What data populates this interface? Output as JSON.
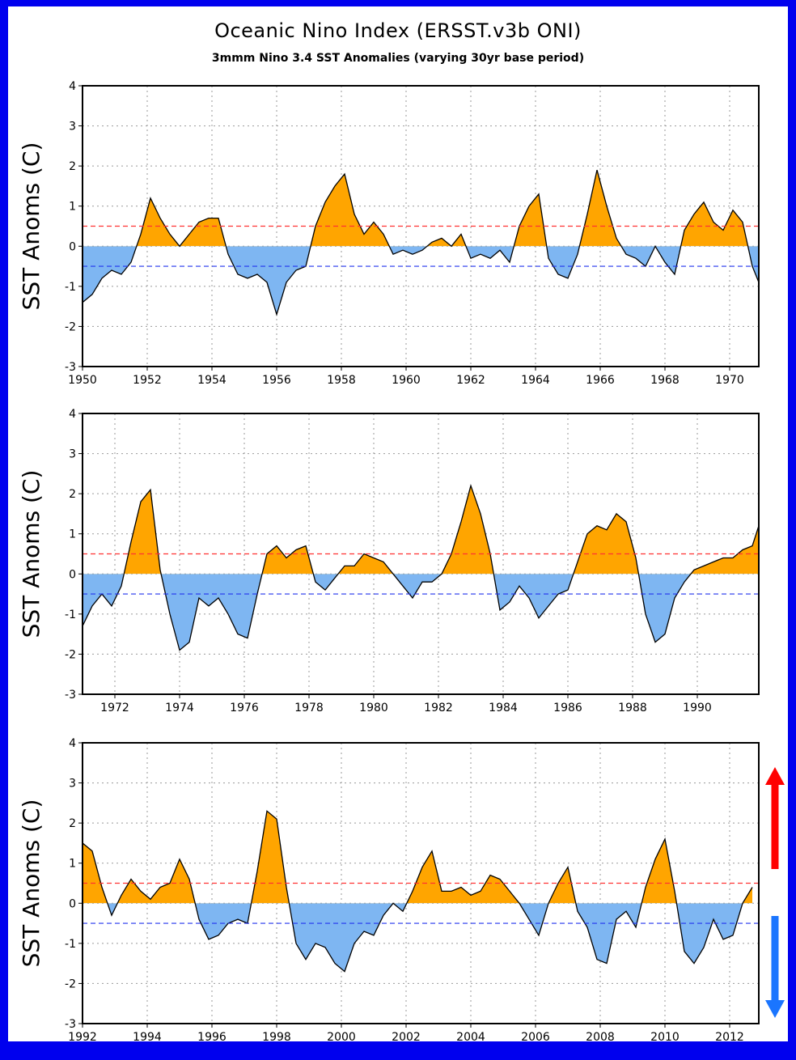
{
  "title": "Oceanic Nino Index (ERSST.v3b ONI)",
  "subtitle": "3mmm Nino 3.4 SST Anomalies (varying 30yr base period)",
  "colors": {
    "background_border": "#0000ee",
    "warm_fill": "#ffa500",
    "cool_fill": "#7eb6f2",
    "warm_threshold": "#ff3333",
    "cool_threshold": "#2233ee",
    "arrow_up": "#ff0000",
    "arrow_down": "#1a75ff"
  },
  "chart_data": [
    {
      "type": "area",
      "ylabel": "SST Anoms (C)",
      "ylim": [
        -3,
        4
      ],
      "yticks": [
        -3,
        -2,
        -1,
        0,
        1,
        2,
        3,
        4
      ],
      "xlim": [
        1950,
        1970.9
      ],
      "xticks": [
        1950,
        1952,
        1954,
        1956,
        1958,
        1960,
        1962,
        1964,
        1966,
        1968,
        1970
      ],
      "thresholds": [
        0.5,
        -0.5
      ],
      "grid": true,
      "x": [
        1950.0,
        1950.3,
        1950.6,
        1950.9,
        1951.2,
        1951.5,
        1951.8,
        1952.1,
        1952.4,
        1952.7,
        1953.0,
        1953.3,
        1953.6,
        1953.9,
        1954.2,
        1954.5,
        1954.8,
        1955.1,
        1955.4,
        1955.7,
        1956.0,
        1956.3,
        1956.6,
        1956.9,
        1957.2,
        1957.5,
        1957.8,
        1958.1,
        1958.4,
        1958.7,
        1959.0,
        1959.3,
        1959.6,
        1959.9,
        1960.2,
        1960.5,
        1960.8,
        1961.1,
        1961.4,
        1961.7,
        1962.0,
        1962.3,
        1962.6,
        1962.9,
        1963.2,
        1963.5,
        1963.8,
        1964.1,
        1964.4,
        1964.7,
        1965.0,
        1965.3,
        1965.6,
        1965.9,
        1966.2,
        1966.5,
        1966.8,
        1967.1,
        1967.4,
        1967.7,
        1968.0,
        1968.3,
        1968.6,
        1968.9,
        1969.2,
        1969.5,
        1969.8,
        1970.1,
        1970.4,
        1970.7,
        1970.9
      ],
      "y": [
        -1.4,
        -1.2,
        -0.8,
        -0.6,
        -0.7,
        -0.4,
        0.3,
        1.2,
        0.7,
        0.3,
        0.0,
        0.3,
        0.6,
        0.7,
        0.7,
        -0.2,
        -0.7,
        -0.8,
        -0.7,
        -0.9,
        -1.7,
        -0.9,
        -0.6,
        -0.5,
        0.5,
        1.1,
        1.5,
        1.8,
        0.8,
        0.3,
        0.6,
        0.3,
        -0.2,
        -0.1,
        -0.2,
        -0.1,
        0.1,
        0.2,
        0.0,
        0.3,
        -0.3,
        -0.2,
        -0.3,
        -0.1,
        -0.4,
        0.5,
        1.0,
        1.3,
        -0.3,
        -0.7,
        -0.8,
        -0.2,
        0.8,
        1.9,
        1.0,
        0.2,
        -0.2,
        -0.3,
        -0.5,
        0.0,
        -0.4,
        -0.7,
        0.4,
        0.8,
        1.1,
        0.6,
        0.4,
        0.9,
        0.6,
        -0.5,
        -0.9
      ]
    },
    {
      "type": "area",
      "ylabel": "SST Anoms (C)",
      "ylim": [
        -3,
        4
      ],
      "yticks": [
        -3,
        -2,
        -1,
        0,
        1,
        2,
        3,
        4
      ],
      "xlim": [
        1971,
        1991.9
      ],
      "xticks": [
        1972,
        1974,
        1976,
        1978,
        1980,
        1982,
        1984,
        1986,
        1988,
        1990
      ],
      "thresholds": [
        0.5,
        -0.5
      ],
      "grid": true,
      "x": [
        1971.0,
        1971.3,
        1971.6,
        1971.9,
        1972.2,
        1972.5,
        1972.8,
        1973.1,
        1973.4,
        1973.7,
        1974.0,
        1974.3,
        1974.6,
        1974.9,
        1975.2,
        1975.5,
        1975.8,
        1976.1,
        1976.4,
        1976.7,
        1977.0,
        1977.3,
        1977.6,
        1977.9,
        1978.2,
        1978.5,
        1978.8,
        1979.1,
        1979.4,
        1979.7,
        1980.0,
        1980.3,
        1980.6,
        1980.9,
        1981.2,
        1981.5,
        1981.8,
        1982.1,
        1982.4,
        1982.7,
        1983.0,
        1983.3,
        1983.6,
        1983.9,
        1984.2,
        1984.5,
        1984.8,
        1985.1,
        1985.4,
        1985.7,
        1986.0,
        1986.3,
        1986.6,
        1986.9,
        1987.2,
        1987.5,
        1987.8,
        1988.1,
        1988.4,
        1988.7,
        1989.0,
        1989.3,
        1989.6,
        1989.9,
        1990.2,
        1990.5,
        1990.8,
        1991.1,
        1991.4,
        1991.7,
        1991.9
      ],
      "y": [
        -1.3,
        -0.8,
        -0.5,
        -0.8,
        -0.3,
        0.8,
        1.8,
        2.1,
        0.1,
        -1.0,
        -1.9,
        -1.7,
        -0.6,
        -0.8,
        -0.6,
        -1.0,
        -1.5,
        -1.6,
        -0.5,
        0.5,
        0.7,
        0.4,
        0.6,
        0.7,
        -0.2,
        -0.4,
        -0.1,
        0.2,
        0.2,
        0.5,
        0.4,
        0.3,
        0.0,
        -0.3,
        -0.6,
        -0.2,
        -0.2,
        0.0,
        0.5,
        1.3,
        2.2,
        1.5,
        0.5,
        -0.9,
        -0.7,
        -0.3,
        -0.6,
        -1.1,
        -0.8,
        -0.5,
        -0.4,
        0.3,
        1.0,
        1.2,
        1.1,
        1.5,
        1.3,
        0.4,
        -1.0,
        -1.7,
        -1.5,
        -0.6,
        -0.2,
        0.1,
        0.2,
        0.3,
        0.4,
        0.4,
        0.6,
        0.7,
        1.2
      ]
    },
    {
      "type": "area",
      "ylabel": "SST Anoms (C)",
      "ylim": [
        -3,
        4
      ],
      "yticks": [
        -3,
        -2,
        -1,
        0,
        1,
        2,
        3,
        4
      ],
      "xlim": [
        1992,
        2012.9
      ],
      "xticks": [
        1992,
        1994,
        1996,
        1998,
        2000,
        2002,
        2004,
        2006,
        2008,
        2010,
        2012
      ],
      "thresholds": [
        0.5,
        -0.5
      ],
      "grid": true,
      "x": [
        1992.0,
        1992.3,
        1992.6,
        1992.9,
        1993.2,
        1993.5,
        1993.8,
        1994.1,
        1994.4,
        1994.7,
        1995.0,
        1995.3,
        1995.6,
        1995.9,
        1996.2,
        1996.5,
        1996.8,
        1997.1,
        1997.4,
        1997.7,
        1998.0,
        1998.3,
        1998.6,
        1998.9,
        1999.2,
        1999.5,
        1999.8,
        2000.1,
        2000.4,
        2000.7,
        2001.0,
        2001.3,
        2001.6,
        2001.9,
        2002.2,
        2002.5,
        2002.8,
        2003.1,
        2003.4,
        2003.7,
        2004.0,
        2004.3,
        2004.6,
        2004.9,
        2005.2,
        2005.5,
        2005.8,
        2006.1,
        2006.4,
        2006.7,
        2007.0,
        2007.3,
        2007.6,
        2007.9,
        2008.2,
        2008.5,
        2008.8,
        2009.1,
        2009.4,
        2009.7,
        2010.0,
        2010.3,
        2010.6,
        2010.9,
        2011.2,
        2011.5,
        2011.8,
        2012.1,
        2012.4,
        2012.7
      ],
      "y": [
        1.5,
        1.3,
        0.4,
        -0.3,
        0.2,
        0.6,
        0.3,
        0.1,
        0.4,
        0.5,
        1.1,
        0.6,
        -0.4,
        -0.9,
        -0.8,
        -0.5,
        -0.4,
        -0.5,
        0.8,
        2.3,
        2.1,
        0.4,
        -1.0,
        -1.4,
        -1.0,
        -1.1,
        -1.5,
        -1.7,
        -1.0,
        -0.7,
        -0.8,
        -0.3,
        0.0,
        -0.2,
        0.3,
        0.9,
        1.3,
        0.3,
        0.3,
        0.4,
        0.2,
        0.3,
        0.7,
        0.6,
        0.3,
        0.0,
        -0.4,
        -0.8,
        0.0,
        0.5,
        0.9,
        -0.2,
        -0.6,
        -1.4,
        -1.5,
        -0.4,
        -0.2,
        -0.6,
        0.4,
        1.1,
        1.6,
        0.3,
        -1.2,
        -1.5,
        -1.1,
        -0.4,
        -0.9,
        -0.8,
        0.0,
        0.4
      ]
    }
  ]
}
